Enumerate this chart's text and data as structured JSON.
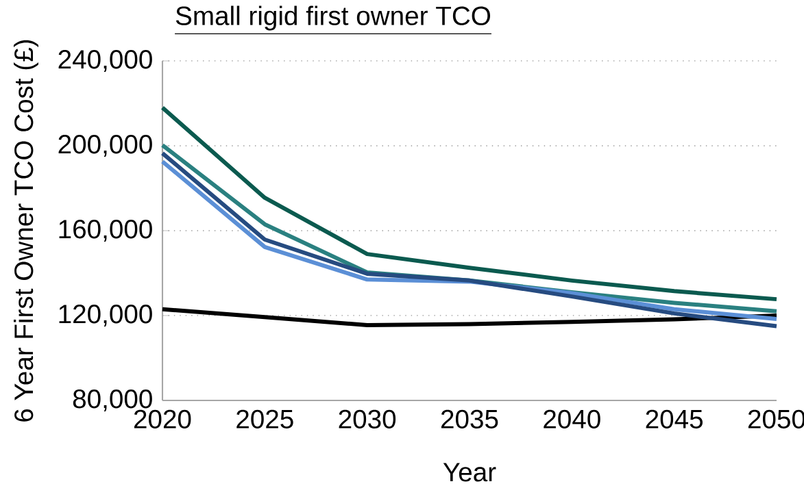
{
  "chart_data": {
    "type": "line",
    "title": "Small rigid first owner TCO",
    "xlabel": "Year",
    "ylabel": "6 Year First Owner TCO Cost (£)",
    "x": [
      2020,
      2025,
      2030,
      2035,
      2040,
      2045,
      2050
    ],
    "series": [
      {
        "color": "#000000",
        "values": [
          123000,
          119300,
          115500,
          116000,
          117000,
          118200,
          120000
        ]
      },
      {
        "color": "#0b5a4f",
        "values": [
          218000,
          175500,
          149000,
          142500,
          136500,
          131500,
          127700
        ]
      },
      {
        "color": "#2a8080",
        "values": [
          200300,
          163000,
          140300,
          136500,
          131000,
          126000,
          122000
        ]
      },
      {
        "color": "#5b8fd6",
        "values": [
          192600,
          152300,
          137000,
          136000,
          130600,
          123000,
          118400
        ]
      },
      {
        "color": "#264b80",
        "values": [
          196500,
          155800,
          139700,
          136500,
          129000,
          121000,
          115000
        ]
      }
    ],
    "xlim": [
      2020,
      2050
    ],
    "ylim": [
      80000,
      240000
    ],
    "xticks": [
      2020,
      2025,
      2030,
      2035,
      2040,
      2045,
      2050
    ],
    "yticks": [
      {
        "value": 80000,
        "label": "80,000"
      },
      {
        "value": 120000,
        "label": "120,000"
      },
      {
        "value": 160000,
        "label": "160,000"
      },
      {
        "value": 200000,
        "label": "200,000"
      },
      {
        "value": 240000,
        "label": "240,000"
      }
    ],
    "grid": "y",
    "marker": "none",
    "line_style": "solid"
  }
}
